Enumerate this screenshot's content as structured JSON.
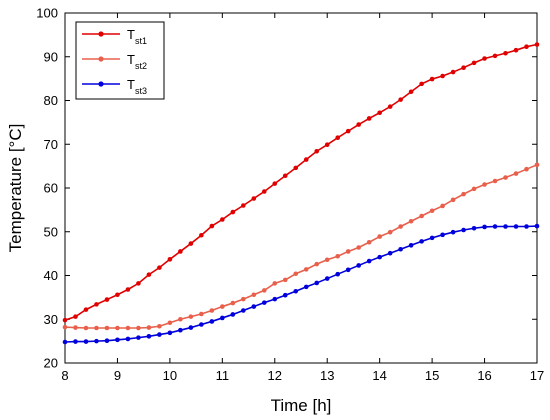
{
  "chart_data": {
    "type": "line",
    "xlabel": "Time [h]",
    "ylabel": "Temperature [°C]",
    "xlim": [
      8,
      17
    ],
    "ylim": [
      20,
      100
    ],
    "xticks": [
      8,
      9,
      10,
      11,
      12,
      13,
      14,
      15,
      16,
      17
    ],
    "yticks": [
      20,
      30,
      40,
      50,
      60,
      70,
      80,
      90,
      100
    ],
    "grid": false,
    "legend_position": "top-left",
    "x": [
      8.0,
      8.2,
      8.4,
      8.6,
      8.8,
      9.0,
      9.2,
      9.4,
      9.6,
      9.8,
      10.0,
      10.2,
      10.4,
      10.6,
      10.8,
      11.0,
      11.2,
      11.4,
      11.6,
      11.8,
      12.0,
      12.2,
      12.4,
      12.6,
      12.8,
      13.0,
      13.2,
      13.4,
      13.6,
      13.8,
      14.0,
      14.2,
      14.4,
      14.6,
      14.8,
      15.0,
      15.2,
      15.4,
      15.6,
      15.8,
      16.0,
      16.2,
      16.4,
      16.6,
      16.8,
      17.0
    ],
    "series": [
      {
        "name": "T",
        "name_sub": "st1",
        "color": "#e00000",
        "values": [
          29.8,
          30.6,
          32.2,
          33.4,
          34.5,
          35.6,
          36.8,
          38.2,
          40.2,
          41.8,
          43.7,
          45.5,
          47.3,
          49.2,
          51.3,
          52.8,
          54.5,
          56.0,
          57.6,
          59.2,
          61.0,
          62.8,
          64.6,
          66.5,
          68.4,
          69.9,
          71.5,
          73.0,
          74.5,
          75.9,
          77.2,
          78.6,
          80.2,
          82.0,
          83.8,
          84.9,
          85.6,
          86.5,
          87.5,
          88.6,
          89.6,
          90.2,
          90.8,
          91.5,
          92.3,
          92.8
        ]
      },
      {
        "name": "T",
        "name_sub": "st2",
        "color": "#e8604c",
        "values": [
          28.2,
          28.1,
          28.0,
          28.0,
          28.0,
          28.0,
          28.0,
          28.0,
          28.1,
          28.4,
          29.2,
          30.0,
          30.6,
          31.2,
          32.0,
          32.9,
          33.7,
          34.6,
          35.6,
          36.6,
          38.2,
          39.0,
          40.4,
          41.4,
          42.6,
          43.6,
          44.4,
          45.5,
          46.4,
          47.6,
          48.9,
          49.9,
          51.2,
          52.4,
          53.6,
          54.8,
          55.9,
          57.3,
          58.6,
          59.8,
          60.8,
          61.6,
          62.4,
          63.3,
          64.3,
          65.3
        ]
      },
      {
        "name": "T",
        "name_sub": "st3",
        "color": "#0000dd",
        "values": [
          24.8,
          24.9,
          24.9,
          25.0,
          25.1,
          25.3,
          25.5,
          25.8,
          26.1,
          26.5,
          26.9,
          27.5,
          28.1,
          28.8,
          29.5,
          30.3,
          31.1,
          32.0,
          32.9,
          33.8,
          34.6,
          35.5,
          36.4,
          37.4,
          38.3,
          39.3,
          40.3,
          41.3,
          42.3,
          43.3,
          44.2,
          45.1,
          46.0,
          46.9,
          47.8,
          48.6,
          49.3,
          49.9,
          50.4,
          50.8,
          51.1,
          51.2,
          51.2,
          51.2,
          51.2,
          51.3
        ]
      }
    ]
  }
}
